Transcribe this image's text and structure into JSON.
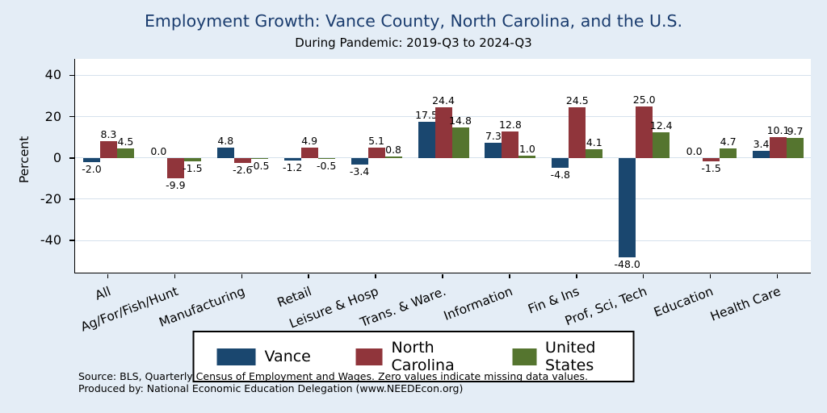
{
  "chart_data": {
    "type": "bar",
    "title": "Employment Growth: Vance County, North Carolina, and the U.S.",
    "subtitle": "During Pandemic: 2019-Q3 to 2024-Q3",
    "ylabel": "Percent",
    "yticks": [
      40,
      20,
      0,
      -20,
      -40
    ],
    "ylim": [
      -56,
      48
    ],
    "grid": true,
    "legend_position": "bottom",
    "value_label_decimals": 1,
    "categories": [
      "All",
      "Ag/For/Fish/Hunt",
      "Manufacturing",
      "Retail",
      "Leisure & Hosp",
      "Trans. & Ware.",
      "Information",
      "Fin & Ins",
      "Prof, Sci, Tech",
      "Education",
      "Health Care"
    ],
    "series": [
      {
        "name": "Vance",
        "color": "#1a476f",
        "values": [
          -2.0,
          0.0,
          4.8,
          -1.2,
          -3.4,
          17.5,
          7.3,
          -4.8,
          -48.0,
          0.0,
          3.4
        ]
      },
      {
        "name": "North Carolina",
        "color": "#90353b",
        "values": [
          8.3,
          -9.9,
          -2.6,
          4.9,
          5.1,
          24.4,
          12.8,
          24.5,
          25.0,
          -1.5,
          10.1
        ]
      },
      {
        "name": "United States",
        "color": "#55752f",
        "values": [
          4.5,
          -1.5,
          -0.5,
          -0.5,
          0.8,
          14.8,
          1.0,
          4.1,
          12.4,
          4.7,
          9.7
        ]
      }
    ]
  },
  "notes": {
    "source": "Source: BLS, Quarterly Census of Employment and Wages. Zero values indicate missing data values.",
    "produced_by": "Produced by: National Economic Education Delegation (www.NEEDEcon.org)"
  },
  "colors": {
    "background": "#e4edf6",
    "plot_background": "#ffffff",
    "title": "#1a3c6e",
    "gridline": "#d6e1ec",
    "axis": "#000000"
  }
}
